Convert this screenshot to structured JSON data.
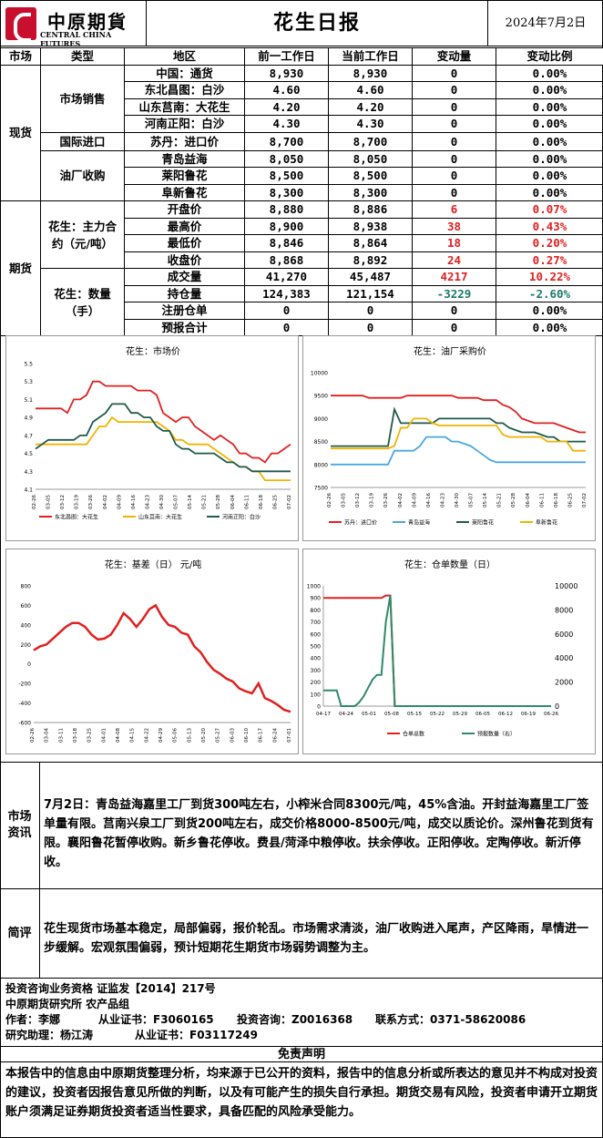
{
  "header": {
    "logo_cn": "中原期貨",
    "logo_en": "CENTRAL CHINA FUTURES",
    "title": "花生日报",
    "date": "2024年7月2日"
  },
  "table": {
    "headers": [
      "市场",
      "类型",
      "地区",
      "前一工作日",
      "当前工作日",
      "变动量",
      "变动比例"
    ],
    "groups": {
      "spot": "现货",
      "futures": "期货",
      "sales": "市场销售",
      "import": "国际进口",
      "oil": "油厂收购",
      "main": "花生：主力合约（元/吨）",
      "qty": "花生：数量（手）"
    },
    "rows": [
      {
        "region": "中国：通货",
        "prev": "8,930",
        "cur": "8,930",
        "chg": "0",
        "pct": "0.00%",
        "c": ""
      },
      {
        "region": "东北昌图：白沙",
        "prev": "4.60",
        "cur": "4.60",
        "chg": "0",
        "pct": "0.00%",
        "c": ""
      },
      {
        "region": "山东莒南：大花生",
        "prev": "4.20",
        "cur": "4.20",
        "chg": "0",
        "pct": "0.00%",
        "c": ""
      },
      {
        "region": "河南正阳：白沙",
        "prev": "4.30",
        "cur": "4.30",
        "chg": "0",
        "pct": "0.00%",
        "c": ""
      },
      {
        "region": "苏丹：进口价",
        "prev": "8,700",
        "cur": "8,700",
        "chg": "0",
        "pct": "0.00%",
        "c": ""
      },
      {
        "region": "青岛益海",
        "prev": "8,050",
        "cur": "8,050",
        "chg": "0",
        "pct": "0.00%",
        "c": ""
      },
      {
        "region": "莱阳鲁花",
        "prev": "8,500",
        "cur": "8,500",
        "chg": "0",
        "pct": "0.00%",
        "c": ""
      },
      {
        "region": "阜新鲁花",
        "prev": "8,300",
        "cur": "8,300",
        "chg": "0",
        "pct": "0.00%",
        "c": ""
      },
      {
        "region": "开盘价",
        "prev": "8,880",
        "cur": "8,886",
        "chg": "6",
        "pct": "0.07%",
        "c": "red"
      },
      {
        "region": "最高价",
        "prev": "8,900",
        "cur": "8,938",
        "chg": "38",
        "pct": "0.43%",
        "c": "red"
      },
      {
        "region": "最低价",
        "prev": "8,846",
        "cur": "8,864",
        "chg": "18",
        "pct": "0.20%",
        "c": "red"
      },
      {
        "region": "收盘价",
        "prev": "8,868",
        "cur": "8,892",
        "chg": "24",
        "pct": "0.27%",
        "c": "red"
      },
      {
        "region": "成交量",
        "prev": "41,270",
        "cur": "45,487",
        "chg": "4217",
        "pct": "10.22%",
        "c": "red"
      },
      {
        "region": "持仓量",
        "prev": "124,383",
        "cur": "121,154",
        "chg": "-3229",
        "pct": "-2.60%",
        "c": "teal"
      },
      {
        "region": "注册仓单",
        "prev": "0",
        "cur": "0",
        "chg": "0",
        "pct": "0.00%",
        "c": ""
      },
      {
        "region": "预报合计",
        "prev": "0",
        "cur": "0",
        "chg": "0",
        "pct": "0.00%",
        "c": ""
      }
    ]
  },
  "chart_data": [
    {
      "type": "line",
      "title": "花生：市场价",
      "ylim": [
        4.1,
        5.5
      ],
      "yticks": [
        "4.1",
        "4.3",
        "4.5",
        "4.7",
        "4.9",
        "5.1",
        "5.3",
        "5.5"
      ],
      "xticks": [
        "02-26",
        "03-05",
        "03-12",
        "03-19",
        "03-26",
        "04-02",
        "04-09",
        "04-16",
        "04-23",
        "04-30",
        "05-07",
        "05-14",
        "05-21",
        "05-28",
        "06-04",
        "06-11",
        "06-18",
        "06-25",
        "07-02"
      ],
      "series": [
        {
          "name": "东北昌图：大花生",
          "color": "#e02020",
          "values": [
            5.0,
            5.0,
            5.0,
            5.0,
            5.0,
            4.95,
            5.1,
            5.1,
            5.15,
            5.3,
            5.3,
            5.25,
            5.25,
            5.25,
            5.25,
            5.25,
            5.2,
            5.2,
            5.2,
            5.15,
            4.95,
            4.9,
            4.85,
            4.9,
            4.9,
            4.8,
            4.75,
            4.7,
            4.65,
            4.7,
            4.65,
            4.6,
            4.5,
            4.5,
            4.45,
            4.45,
            4.4,
            4.5,
            4.5,
            4.55,
            4.6
          ]
        },
        {
          "name": "山东莒南：大花生",
          "color": "#f0b400",
          "values": [
            4.6,
            4.6,
            4.6,
            4.6,
            4.6,
            4.6,
            4.6,
            4.6,
            4.6,
            4.7,
            4.8,
            4.8,
            4.9,
            4.85,
            4.85,
            4.85,
            4.85,
            4.85,
            4.85,
            4.85,
            4.8,
            4.75,
            4.65,
            4.65,
            4.6,
            4.6,
            4.6,
            4.6,
            4.55,
            4.5,
            4.45,
            4.4,
            4.35,
            4.35,
            4.3,
            4.3,
            4.2,
            4.2,
            4.2,
            4.2,
            4.2
          ]
        },
        {
          "name": "河南正阳：白沙",
          "color": "#1f5a4a",
          "values": [
            4.55,
            4.6,
            4.65,
            4.65,
            4.65,
            4.65,
            4.65,
            4.7,
            4.7,
            4.85,
            4.9,
            4.95,
            5.05,
            5.05,
            5.05,
            4.95,
            4.95,
            4.9,
            4.9,
            4.8,
            4.75,
            4.75,
            4.6,
            4.55,
            4.55,
            4.5,
            4.5,
            4.5,
            4.5,
            4.45,
            4.4,
            4.4,
            4.35,
            4.35,
            4.3,
            4.3,
            4.3,
            4.3,
            4.3,
            4.3,
            4.3
          ]
        }
      ]
    },
    {
      "type": "line",
      "title": "花生：油厂采购价",
      "ylim": [
        7500,
        10000
      ],
      "yticks": [
        "7500",
        "8000",
        "8500",
        "9000",
        "9500",
        "10000"
      ],
      "xticks": [
        "02-26",
        "03-05",
        "03-12",
        "03-19",
        "03-26",
        "04-02",
        "04-09",
        "04-16",
        "04-23",
        "04-30",
        "05-07",
        "05-14",
        "05-21",
        "05-28",
        "06-04",
        "06-11",
        "06-18",
        "06-25",
        "07-02"
      ],
      "series": [
        {
          "name": "苏丹：进口价",
          "color": "#e02020",
          "values": [
            9500,
            9500,
            9500,
            9500,
            9500,
            9500,
            9450,
            9450,
            9450,
            9450,
            9450,
            9450,
            9500,
            9500,
            9500,
            9500,
            9500,
            9500,
            9500,
            9500,
            9450,
            9450,
            9450,
            9450,
            9400,
            9400,
            9400,
            9300,
            9250,
            9150,
            9000,
            8950,
            8900,
            8900,
            8900,
            8900,
            8850,
            8800,
            8750,
            8700,
            8700
          ]
        },
        {
          "name": "青岛益海",
          "color": "#4aa8e0",
          "values": [
            8000,
            8000,
            8000,
            8000,
            8000,
            8000,
            8000,
            8000,
            8000,
            8000,
            8300,
            8300,
            8300,
            8300,
            8400,
            8600,
            8600,
            8600,
            8600,
            8500,
            8500,
            8450,
            8400,
            8300,
            8200,
            8100,
            8050,
            8050,
            8050,
            8050,
            8050,
            8050,
            8050,
            8050,
            8050,
            8050,
            8050,
            8050,
            8050,
            8050,
            8050
          ]
        },
        {
          "name": "莱阳鲁花",
          "color": "#1f5a4a",
          "values": [
            8400,
            8400,
            8400,
            8400,
            8400,
            8400,
            8400,
            8400,
            8400,
            8400,
            9200,
            8900,
            8900,
            8900,
            8900,
            8900,
            8900,
            9000,
            9000,
            9000,
            9000,
            9000,
            9000,
            9000,
            9000,
            9000,
            8900,
            8900,
            8800,
            8750,
            8700,
            8700,
            8700,
            8650,
            8600,
            8600,
            8500,
            8500,
            8500,
            8500,
            8500
          ]
        },
        {
          "name": "阜新鲁花",
          "color": "#f0b400",
          "values": [
            8350,
            8350,
            8350,
            8350,
            8350,
            8350,
            8350,
            8350,
            8350,
            8350,
            8400,
            8800,
            8800,
            9000,
            9000,
            9000,
            8900,
            8850,
            8850,
            8850,
            8850,
            8850,
            8850,
            8850,
            8850,
            8850,
            8850,
            8650,
            8600,
            8600,
            8600,
            8600,
            8600,
            8600,
            8500,
            8500,
            8500,
            8500,
            8300,
            8300,
            8300
          ]
        }
      ]
    },
    {
      "type": "line",
      "title": "花生：基差（日） 元/吨",
      "ylim": [
        -600,
        800
      ],
      "yticks": [
        "-600",
        "-400",
        "-200",
        "0",
        "200",
        "400",
        "600",
        "800"
      ],
      "xticks": [
        "02-26",
        "03-04",
        "03-11",
        "03-18",
        "03-25",
        "04-01",
        "04-08",
        "04-15",
        "04-22",
        "04-29",
        "05-06",
        "05-13",
        "05-20",
        "05-27",
        "06-03",
        "06-10",
        "06-17",
        "06-24",
        "07-01"
      ],
      "series": [
        {
          "name": "",
          "color": "#e02020",
          "values": [
            140,
            180,
            200,
            260,
            320,
            380,
            420,
            420,
            380,
            300,
            250,
            260,
            300,
            400,
            520,
            460,
            380,
            460,
            560,
            600,
            480,
            400,
            380,
            320,
            300,
            180,
            120,
            20,
            -60,
            -100,
            -150,
            -180,
            -250,
            -280,
            -300,
            -200,
            -350,
            -380,
            -420,
            -470,
            -490
          ]
        }
      ]
    },
    {
      "type": "line",
      "title": "花生：仓单数量（日）",
      "ylim": [
        0,
        1000
      ],
      "y2lim": [
        0,
        10000
      ],
      "yticks": [
        "0",
        "100",
        "200",
        "300",
        "400",
        "500",
        "600",
        "700",
        "800",
        "900",
        "1000"
      ],
      "y2ticks": [
        "0",
        "2000",
        "4000",
        "6000",
        "8000",
        "10000"
      ],
      "xticks": [
        "04-17",
        "04-24",
        "05-01",
        "05-08",
        "05-15",
        "05-22",
        "05-29",
        "06-05",
        "06-12",
        "06-19",
        "06-26"
      ],
      "series": [
        {
          "name": "仓单总数",
          "axis": "left",
          "color": "#e02020",
          "values": [
            900,
            900,
            900,
            900,
            900,
            900,
            900,
            900,
            900,
            900,
            900,
            900,
            900,
            900,
            920,
            920,
            0,
            0,
            0,
            0,
            0,
            0,
            0,
            0,
            0,
            0,
            0,
            0,
            0,
            0,
            0,
            0,
            0,
            0,
            0,
            0,
            0,
            0,
            0,
            0,
            0,
            0,
            0,
            0,
            0,
            0,
            0,
            0,
            0,
            0,
            0,
            0
          ]
        },
        {
          "name": "预报数量（右）",
          "axis": "right",
          "color": "#2e8b6a",
          "values": [
            1300,
            1300,
            1300,
            1300,
            0,
            0,
            0,
            0,
            300,
            800,
            1500,
            2200,
            2600,
            2600,
            7000,
            9200,
            0,
            0,
            0,
            0,
            0,
            0,
            0,
            0,
            0,
            0,
            0,
            0,
            0,
            0,
            0,
            0,
            0,
            0,
            0,
            0,
            0,
            0,
            0,
            0,
            0,
            0,
            0,
            0,
            0,
            0,
            0,
            0,
            0,
            0,
            0,
            0
          ]
        }
      ]
    }
  ],
  "market_info": {
    "label": "市场资讯",
    "text": "7月2日：青岛益海嘉里工厂到货300吨左右，小榨米合同8300元/吨，45%含油。开封益海嘉里工厂签单量有限。莒南兴泉工厂到货200吨左右，成交价格8000-8500元/吨，成交以质论价。深州鲁花到货有限。襄阳鲁花暂停收购。新乡鲁花停收。费县/菏泽中粮停收。扶余停收。正阳停收。定陶停收。新沂停收。"
  },
  "comment": {
    "label": "简评",
    "text": "花生现货市场基本稳定，局部偏弱，报价轮乱。市场需求清淡，油厂收购进入尾声，产区降雨，旱情进一步缓解。宏观氛围偏弱，预计短期花生期货市场弱势调整为主。"
  },
  "footer": {
    "line1": "投资咨询业务资格  证监发【2014】217号",
    "line2": "中原期货研究所  农产品组",
    "author": "作者：李娜",
    "author_cert": "从业证书：F3060165",
    "consult": "投资咨询：Z0016368",
    "contact": "联系方式：0371-58620086",
    "assistant": "研究助理：杨江涛",
    "assistant_cert": "从业证书：F03117249",
    "disclaimer_title": "免责声明",
    "disclaimer": "本报告中的信息由中原期货整理分析，均来源于已公开的资料，报告中的信息分析或所表达的意见并不构成对投资的建议，投资者因报告意见所做的判断，以及有可能产生的损失自行承担。期货交易有风险，投资者申请开立期货账户须满足证券期货投资者适当性要求，具备匹配的风险承受能力。"
  }
}
